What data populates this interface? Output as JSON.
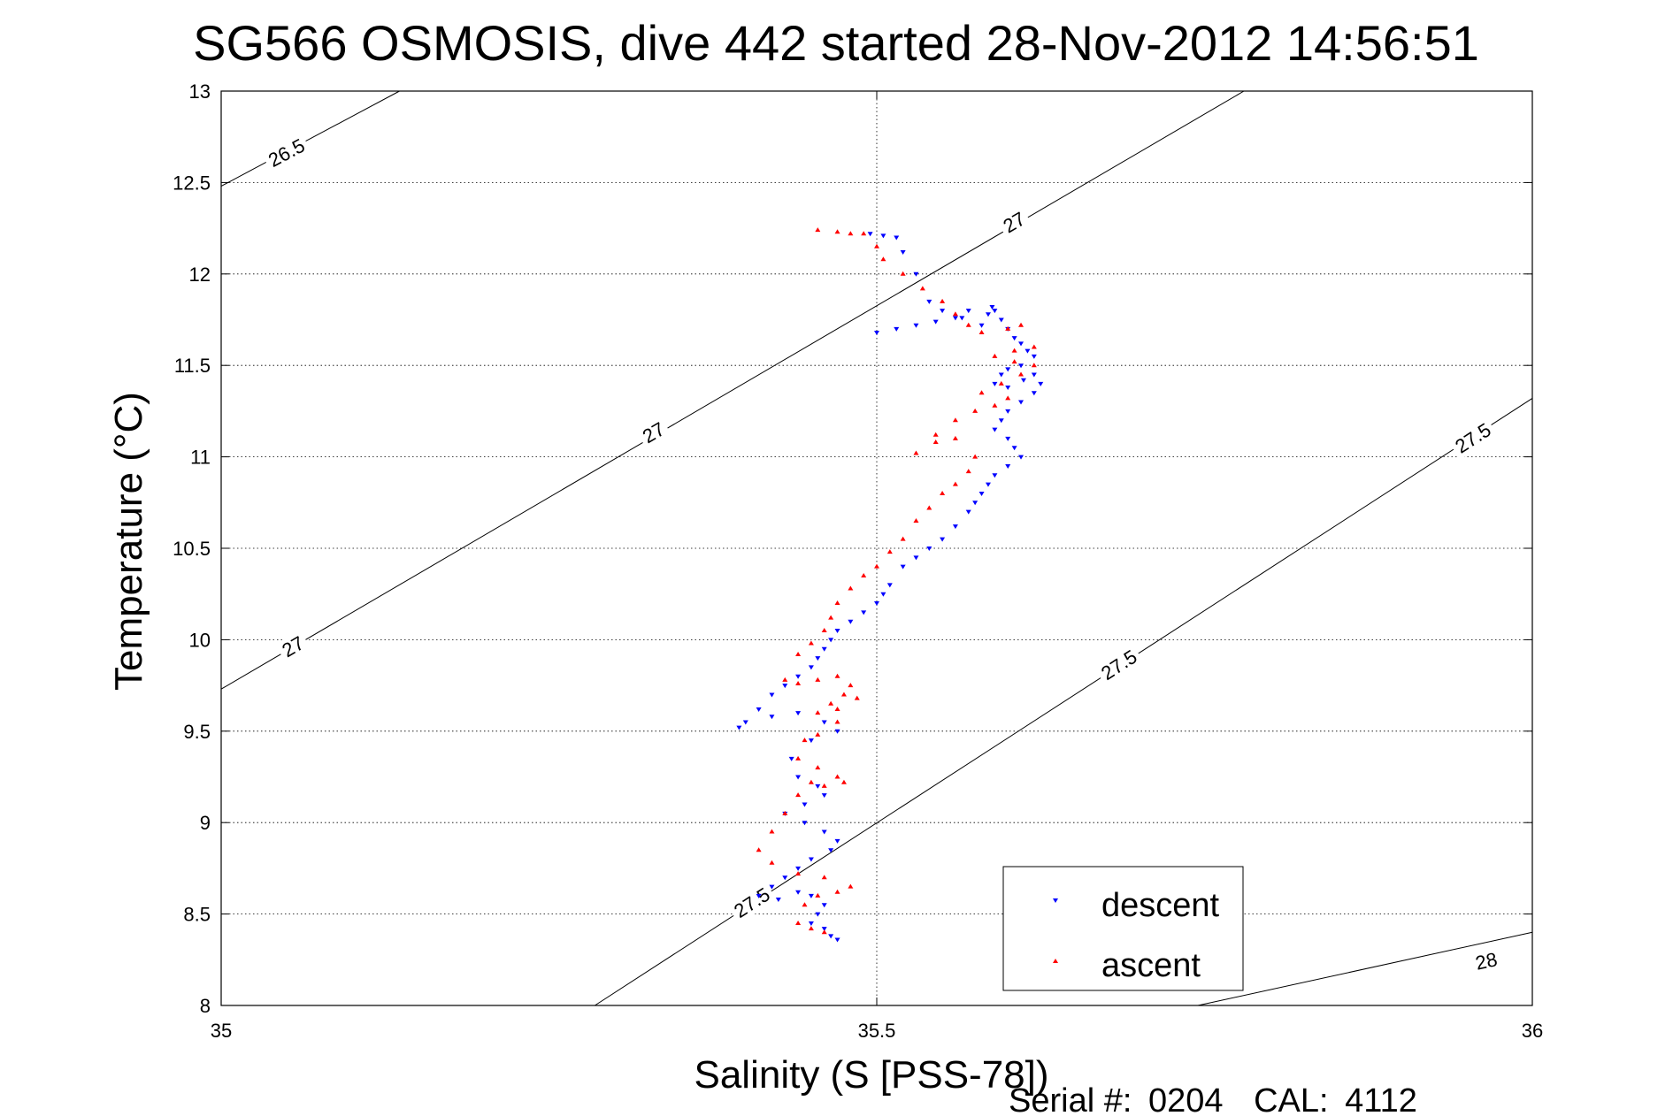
{
  "footer": {
    "serial_label": "Serial #:",
    "serial": "0204",
    "cal_label": "CAL:",
    "cal": "4112"
  },
  "chart_data": {
    "type": "scatter",
    "title": "SG566 OSMOSIS, dive 442 started 28-Nov-2012 14:56:51",
    "xlabel": "Salinity (S [PSS-78])",
    "ylabel": "Temperature (°C)",
    "xlim": [
      35,
      36
    ],
    "ylim": [
      8,
      13
    ],
    "x_ticks": [
      35,
      35.5,
      36
    ],
    "x_tick_labels": [
      "35",
      "35.5",
      "36"
    ],
    "y_ticks": [
      8,
      8.5,
      9,
      9.5,
      10,
      10.5,
      11,
      11.5,
      12,
      12.5,
      13
    ],
    "y_tick_labels": [
      "8",
      "8.5",
      "9",
      "9.5",
      "10",
      "10.5",
      "11",
      "11.5",
      "12",
      "12.5",
      "13"
    ],
    "grid": true,
    "legend_position": "bottom-right",
    "colors": {
      "descent": "#0000ff",
      "ascent": "#ff0000",
      "contour": "#000000"
    },
    "density_contours": [
      {
        "label": "26.5",
        "points": [
          [
            35.0,
            12.48
          ],
          [
            35.136,
            13.0
          ]
        ],
        "labels_at": [
          [
            35.05,
            12.66
          ]
        ]
      },
      {
        "label": "27",
        "points": [
          [
            35.0,
            9.73
          ],
          [
            35.78,
            13.0
          ]
        ],
        "labels_at": [
          [
            35.055,
            9.96
          ],
          [
            35.33,
            11.13
          ],
          [
            35.605,
            12.28
          ]
        ]
      },
      {
        "label": "27.5",
        "points": [
          [
            35.285,
            8.0
          ],
          [
            36.0,
            11.32
          ]
        ],
        "labels_at": [
          [
            35.405,
            8.56
          ],
          [
            35.685,
            9.86
          ],
          [
            35.955,
            11.1
          ]
        ]
      },
      {
        "label": "28",
        "points": [
          [
            35.745,
            8.0
          ],
          [
            36.0,
            8.4
          ]
        ],
        "labels_at": [
          [
            35.965,
            8.24
          ]
        ]
      }
    ],
    "series": [
      {
        "name": "descent",
        "marker": "triangle-down",
        "x": [
          35.495,
          35.505,
          35.515,
          35.52,
          35.53,
          35.54,
          35.55,
          35.565,
          35.58,
          35.585,
          35.59,
          35.57,
          35.56,
          35.545,
          35.53,
          35.515,
          35.5,
          35.588,
          35.595,
          35.6,
          35.605,
          35.61,
          35.615,
          35.62,
          35.61,
          35.6,
          35.595,
          35.59,
          35.6,
          35.612,
          35.62,
          35.625,
          35.62,
          35.61,
          35.6,
          35.595,
          35.59,
          35.6,
          35.605,
          35.61,
          35.6,
          35.59,
          35.585,
          35.58,
          35.575,
          35.57,
          35.56,
          35.55,
          35.54,
          35.53,
          35.52,
          35.51,
          35.505,
          35.5,
          35.49,
          35.48,
          35.47,
          35.465,
          35.46,
          35.455,
          35.45,
          35.44,
          35.43,
          35.42,
          35.41,
          35.4,
          35.395,
          35.42,
          35.44,
          35.46,
          35.47,
          35.45,
          35.435,
          35.44,
          35.455,
          35.46,
          35.445,
          35.43,
          35.445,
          35.46,
          35.47,
          35.465,
          35.45,
          35.44,
          35.43,
          35.42,
          35.41,
          35.425,
          35.44,
          35.45,
          35.46,
          35.455,
          35.45,
          35.46,
          35.465,
          35.47
        ],
        "y": [
          12.22,
          12.21,
          12.2,
          12.12,
          12.0,
          11.85,
          11.8,
          11.76,
          11.72,
          11.78,
          11.8,
          11.8,
          11.76,
          11.74,
          11.72,
          11.7,
          11.68,
          11.82,
          11.75,
          11.7,
          11.65,
          11.62,
          11.58,
          11.55,
          11.5,
          11.48,
          11.45,
          11.4,
          11.38,
          11.42,
          11.45,
          11.4,
          11.35,
          11.3,
          11.25,
          11.2,
          11.15,
          11.1,
          11.05,
          11.0,
          10.95,
          10.9,
          10.85,
          10.8,
          10.75,
          10.7,
          10.62,
          10.55,
          10.5,
          10.45,
          10.4,
          10.3,
          10.25,
          10.2,
          10.15,
          10.1,
          10.05,
          10.0,
          9.95,
          9.9,
          9.85,
          9.8,
          9.75,
          9.7,
          9.62,
          9.55,
          9.52,
          9.58,
          9.6,
          9.55,
          9.5,
          9.45,
          9.35,
          9.25,
          9.2,
          9.15,
          9.1,
          9.05,
          9.0,
          8.95,
          8.9,
          8.85,
          8.8,
          8.75,
          8.7,
          8.65,
          8.6,
          8.58,
          8.62,
          8.6,
          8.55,
          8.5,
          8.45,
          8.42,
          8.38,
          8.36
        ]
      },
      {
        "name": "ascent",
        "marker": "triangle-up",
        "x": [
          35.455,
          35.47,
          35.48,
          35.49,
          35.5,
          35.505,
          35.52,
          35.535,
          35.55,
          35.56,
          35.57,
          35.58,
          35.6,
          35.61,
          35.62,
          35.605,
          35.59,
          35.605,
          35.62,
          35.61,
          35.595,
          35.58,
          35.6,
          35.59,
          35.575,
          35.56,
          35.545,
          35.53,
          35.545,
          35.56,
          35.575,
          35.57,
          35.56,
          35.55,
          35.54,
          35.53,
          35.52,
          35.51,
          35.5,
          35.49,
          35.48,
          35.47,
          35.465,
          35.46,
          35.45,
          35.44,
          35.43,
          35.44,
          35.455,
          35.47,
          35.48,
          35.475,
          35.465,
          35.455,
          35.47,
          35.485,
          35.47,
          35.455,
          35.445,
          35.44,
          35.455,
          35.47,
          35.475,
          35.46,
          35.45,
          35.44,
          35.43,
          35.42,
          35.41,
          35.42,
          35.44,
          35.46,
          35.48,
          35.47,
          35.455,
          35.445,
          35.44,
          35.45,
          35.46
        ],
        "y": [
          12.24,
          12.23,
          12.22,
          12.22,
          12.15,
          12.08,
          12.0,
          11.92,
          11.85,
          11.78,
          11.72,
          11.68,
          11.7,
          11.72,
          11.6,
          11.58,
          11.55,
          11.52,
          11.5,
          11.45,
          11.4,
          11.35,
          11.32,
          11.28,
          11.25,
          11.2,
          11.12,
          11.02,
          11.08,
          11.1,
          11.0,
          10.92,
          10.85,
          10.8,
          10.72,
          10.65,
          10.55,
          10.48,
          10.4,
          10.35,
          10.28,
          10.2,
          10.12,
          10.05,
          9.98,
          9.92,
          9.78,
          9.76,
          9.78,
          9.8,
          9.75,
          9.7,
          9.65,
          9.6,
          9.62,
          9.68,
          9.55,
          9.48,
          9.45,
          9.35,
          9.3,
          9.25,
          9.22,
          9.2,
          9.22,
          9.15,
          9.05,
          8.95,
          8.85,
          8.78,
          8.72,
          8.7,
          8.65,
          8.62,
          8.6,
          8.55,
          8.45,
          8.42,
          8.4
        ]
      }
    ]
  }
}
